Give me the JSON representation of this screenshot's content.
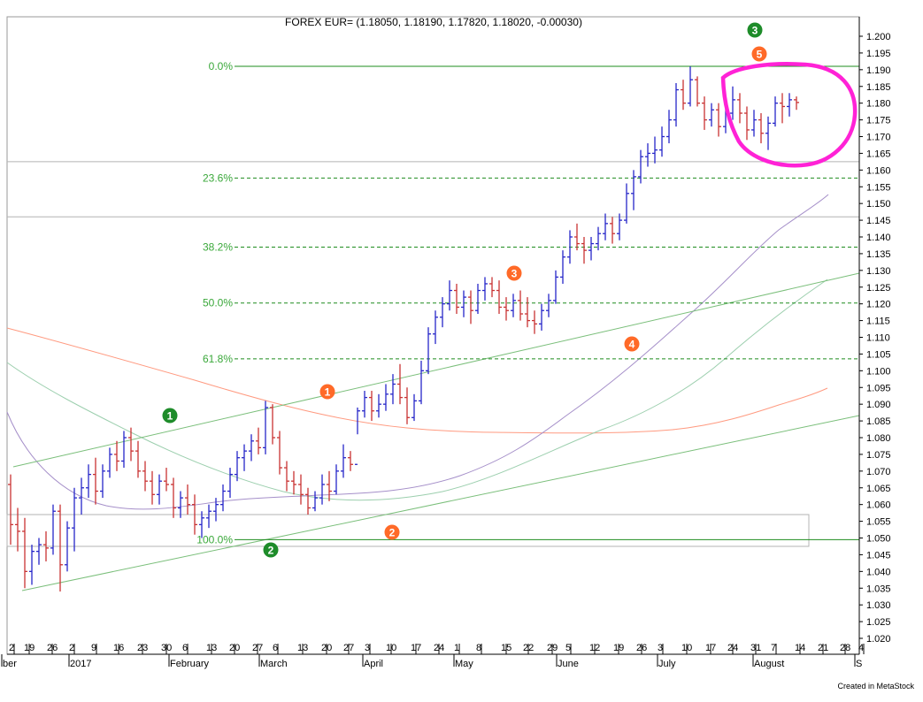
{
  "chart_data": {
    "type": "ohlc",
    "title": "FOREX EUR= (1.18050, 1.18190, 1.17820, 1.18020, -0.00030)",
    "credit": "Created in MetaStock",
    "ylim": [
      1.0175,
      1.2075
    ],
    "y_ticks": [
      "1.200",
      "1.195",
      "1.190",
      "1.185",
      "1.180",
      "1.175",
      "1.170",
      "1.165",
      "1.160",
      "1.155",
      "1.150",
      "1.145",
      "1.140",
      "1.135",
      "1.130",
      "1.125",
      "1.120",
      "1.115",
      "1.110",
      "1.105",
      "1.100",
      "1.095",
      "1.090",
      "1.085",
      "1.080",
      "1.075",
      "1.070",
      "1.065",
      "1.060",
      "1.055",
      "1.050",
      "1.045",
      "1.040",
      "1.035",
      "1.030",
      "1.025",
      "1.020"
    ],
    "x_day_ticks": [
      "2",
      "19",
      "26",
      "2",
      "9",
      "16",
      "23",
      "30",
      "6",
      "13",
      "20",
      "27",
      "6",
      "13",
      "20",
      "27",
      "3",
      "10",
      "17",
      "24",
      "1",
      "8",
      "15",
      "22",
      "29",
      "5",
      "12",
      "19",
      "26",
      "3",
      "10",
      "17",
      "24",
      "31",
      "7",
      "14",
      "21",
      "28",
      "4"
    ],
    "x_month_labels": [
      "ber",
      "2017",
      "February",
      "March",
      "April",
      "May",
      "June",
      "July",
      "August",
      "S"
    ],
    "fibonacci": {
      "high": 1.191,
      "low": 1.0495,
      "labels": [
        "0.0%",
        "23.6%",
        "38.2%",
        "50.0%",
        "61.8%",
        "100.0%"
      ]
    },
    "gray_lines": [
      1.1625,
      1.146
    ],
    "gray_box": [
      1.0475,
      1.057
    ],
    "wave_labels_green": [
      "1",
      "2",
      "3"
    ],
    "wave_labels_orange": [
      "1",
      "2",
      "3",
      "4",
      "5"
    ],
    "series": [
      {
        "values": [
          [
            1.066,
            1.069,
            1.048,
            1.054
          ],
          [
            1.054,
            1.059,
            1.046,
            1.052
          ],
          [
            1.052,
            1.056,
            1.035,
            1.04
          ],
          [
            1.04,
            1.048,
            1.036,
            1.046
          ],
          [
            1.046,
            1.05,
            1.042,
            1.048
          ],
          [
            1.048,
            1.052,
            1.043,
            1.047
          ],
          [
            1.047,
            1.06,
            1.045,
            1.058
          ],
          [
            1.058,
            1.06,
            1.034,
            1.042
          ],
          [
            1.042,
            1.055,
            1.04,
            1.053
          ],
          [
            1.053,
            1.065,
            1.046,
            1.062
          ],
          [
            1.062,
            1.068,
            1.057,
            1.065
          ],
          [
            1.065,
            1.072,
            1.062,
            1.069
          ],
          [
            1.069,
            1.074,
            1.06,
            1.064
          ],
          [
            1.064,
            1.072,
            1.062,
            1.07
          ],
          [
            1.07,
            1.077,
            1.068,
            1.075
          ],
          [
            1.075,
            1.079,
            1.07,
            1.073
          ],
          [
            1.073,
            1.082,
            1.071,
            1.08
          ],
          [
            1.08,
            1.083,
            1.073,
            1.076
          ],
          [
            1.076,
            1.079,
            1.068,
            1.07
          ],
          [
            1.07,
            1.073,
            1.064,
            1.067
          ],
          [
            1.067,
            1.07,
            1.06,
            1.063
          ],
          [
            1.063,
            1.069,
            1.06,
            1.067
          ],
          [
            1.067,
            1.071,
            1.064,
            1.066
          ],
          [
            1.066,
            1.068,
            1.056,
            1.059
          ],
          [
            1.059,
            1.064,
            1.056,
            1.062
          ],
          [
            1.062,
            1.066,
            1.057,
            1.06
          ],
          [
            1.06,
            1.063,
            1.051,
            1.054
          ],
          [
            1.054,
            1.058,
            1.05,
            1.056
          ],
          [
            1.056,
            1.06,
            1.053,
            1.058
          ],
          [
            1.058,
            1.062,
            1.055,
            1.06
          ],
          [
            1.06,
            1.066,
            1.058,
            1.064
          ],
          [
            1.064,
            1.071,
            1.062,
            1.069
          ],
          [
            1.069,
            1.076,
            1.067,
            1.074
          ],
          [
            1.074,
            1.078,
            1.07,
            1.076
          ],
          [
            1.076,
            1.081,
            1.073,
            1.079
          ],
          [
            1.079,
            1.083,
            1.075,
            1.077
          ],
          [
            1.077,
            1.091,
            1.075,
            1.089
          ],
          [
            1.089,
            1.09,
            1.078,
            1.08
          ],
          [
            1.08,
            1.082,
            1.069,
            1.071
          ],
          [
            1.071,
            1.073,
            1.064,
            1.067
          ],
          [
            1.067,
            1.07,
            1.063,
            1.066
          ],
          [
            1.066,
            1.069,
            1.06,
            1.063
          ],
          [
            1.063,
            1.065,
            1.057,
            1.059
          ],
          [
            1.059,
            1.064,
            1.058,
            1.062
          ],
          [
            1.062,
            1.069,
            1.06,
            1.066
          ],
          [
            1.066,
            1.07,
            1.061,
            1.064
          ],
          [
            1.064,
            1.072,
            1.063,
            1.07
          ],
          [
            1.07,
            1.078,
            1.068,
            1.074
          ],
          [
            1.074,
            1.076,
            1.07,
            1.072
          ],
          [
            1.072,
            1.089,
            1.081,
            1.088
          ],
          [
            1.088,
            1.094,
            1.086,
            1.092
          ],
          [
            1.092,
            1.094,
            1.085,
            1.088
          ],
          [
            1.088,
            1.093,
            1.086,
            1.09
          ],
          [
            1.09,
            1.096,
            1.088,
            1.093
          ],
          [
            1.093,
            1.099,
            1.09,
            1.096
          ],
          [
            1.096,
            1.102,
            1.09,
            1.092
          ],
          [
            1.092,
            1.095,
            1.084,
            1.086
          ],
          [
            1.086,
            1.093,
            1.085,
            1.091
          ],
          [
            1.091,
            1.103,
            1.09,
            1.1
          ],
          [
            1.1,
            1.113,
            1.099,
            1.111
          ],
          [
            1.111,
            1.118,
            1.108,
            1.116
          ],
          [
            1.116,
            1.122,
            1.113,
            1.12
          ],
          [
            1.12,
            1.127,
            1.118,
            1.124
          ],
          [
            1.124,
            1.126,
            1.117,
            1.119
          ],
          [
            1.119,
            1.124,
            1.116,
            1.122
          ],
          [
            1.122,
            1.124,
            1.114,
            1.118
          ],
          [
            1.118,
            1.126,
            1.117,
            1.124
          ],
          [
            1.124,
            1.128,
            1.121,
            1.126
          ],
          [
            1.126,
            1.128,
            1.122,
            1.124
          ],
          [
            1.124,
            1.127,
            1.117,
            1.119
          ],
          [
            1.119,
            1.122,
            1.115,
            1.118
          ],
          [
            1.118,
            1.123,
            1.116,
            1.121
          ],
          [
            1.121,
            1.124,
            1.115,
            1.117
          ],
          [
            1.117,
            1.122,
            1.113,
            1.115
          ],
          [
            1.115,
            1.118,
            1.111,
            1.114
          ],
          [
            1.114,
            1.12,
            1.112,
            1.118
          ],
          [
            1.118,
            1.123,
            1.116,
            1.121
          ],
          [
            1.121,
            1.13,
            1.12,
            1.128
          ],
          [
            1.128,
            1.136,
            1.126,
            1.134
          ],
          [
            1.134,
            1.142,
            1.132,
            1.14
          ],
          [
            1.14,
            1.144,
            1.136,
            1.138
          ],
          [
            1.138,
            1.14,
            1.132,
            1.136
          ],
          [
            1.136,
            1.14,
            1.133,
            1.138
          ],
          [
            1.138,
            1.143,
            1.136,
            1.141
          ],
          [
            1.141,
            1.147,
            1.139,
            1.144
          ],
          [
            1.144,
            1.146,
            1.138,
            1.141
          ],
          [
            1.141,
            1.147,
            1.139,
            1.145
          ],
          [
            1.145,
            1.156,
            1.144,
            1.153
          ],
          [
            1.153,
            1.16,
            1.148,
            1.158
          ],
          [
            1.158,
            1.166,
            1.156,
            1.164
          ],
          [
            1.164,
            1.168,
            1.161,
            1.165
          ],
          [
            1.165,
            1.17,
            1.162,
            1.166
          ],
          [
            1.166,
            1.173,
            1.164,
            1.17
          ],
          [
            1.17,
            1.178,
            1.168,
            1.175
          ],
          [
            1.175,
            1.186,
            1.173,
            1.184
          ],
          [
            1.184,
            1.187,
            1.178,
            1.18
          ],
          [
            1.18,
            1.191,
            1.179,
            1.187
          ],
          [
            1.187,
            1.188,
            1.179,
            1.18
          ],
          [
            1.18,
            1.182,
            1.172,
            1.175
          ],
          [
            1.175,
            1.18,
            1.173,
            1.178
          ],
          [
            1.178,
            1.18,
            1.17,
            1.173
          ],
          [
            1.173,
            1.179,
            1.171,
            1.177
          ],
          [
            1.177,
            1.185,
            1.175,
            1.181
          ],
          [
            1.181,
            1.183,
            1.174,
            1.177
          ],
          [
            1.177,
            1.179,
            1.169,
            1.172
          ],
          [
            1.172,
            1.178,
            1.17,
            1.175
          ],
          [
            1.175,
            1.177,
            1.168,
            1.171
          ],
          [
            1.171,
            1.176,
            1.166,
            1.174
          ],
          [
            1.174,
            1.182,
            1.173,
            1.18
          ],
          [
            1.18,
            1.183,
            1.174,
            1.179
          ],
          [
            1.179,
            1.183,
            1.176,
            1.181
          ],
          [
            1.181,
            1.182,
            1.178,
            1.1802
          ]
        ]
      }
    ],
    "moving_average_colors": [
      "#ff9a80",
      "#9ccfae",
      "#a58fc9"
    ],
    "colors": {
      "up_bar": "#2626c8",
      "down_bar": "#c83232",
      "fib_line": "#1e8c1e",
      "fib_label": "#3aa83a",
      "trendline": "#7bbf7b",
      "gray_line": "#b4b4b4",
      "circle": "#ff22d6",
      "wave_green": "#1e8c2a",
      "wave_orange": "#ff6a28"
    }
  }
}
